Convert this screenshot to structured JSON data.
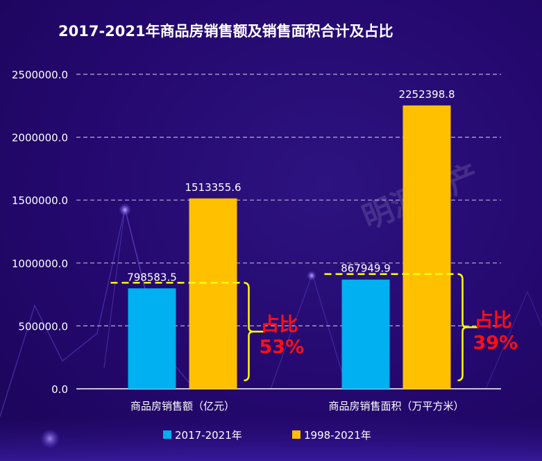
{
  "chart_data": {
    "type": "bar",
    "title": "2017-2021年商品房销售额及销售面积合计及占比",
    "categories": [
      "商品房销售额（亿元）",
      "商品房销售面积（万平方米）"
    ],
    "series": [
      {
        "name": "2017-2021年",
        "color": "#00b0f0",
        "values": [
          798583.5,
          867949.9
        ],
        "labels": [
          "798583.5",
          "867949.9"
        ]
      },
      {
        "name": "1998-2021年",
        "color": "#ffc000",
        "values": [
          1513355.6,
          2252398.8
        ],
        "labels": [
          "1513355.6",
          "2252398.8"
        ]
      }
    ],
    "ylim": [
      0,
      2500000
    ],
    "yticks": [
      "0.0",
      "500000.0",
      "1000000.0",
      "1500000.0",
      "2000000.0",
      "2500000.0"
    ],
    "ytick_values": [
      0,
      500000,
      1000000,
      1500000,
      2000000,
      2500000
    ],
    "grid": true,
    "legend_position": "bottom",
    "annotations": [
      {
        "category_index": 0,
        "text_line1": "占比",
        "text_line2": "53%"
      },
      {
        "category_index": 1,
        "text_line1": "占比",
        "text_line2": "39%"
      }
    ],
    "annotation_color": "#ff0f14",
    "bracket_color": "#ffff00",
    "watermark": "明源地产"
  }
}
